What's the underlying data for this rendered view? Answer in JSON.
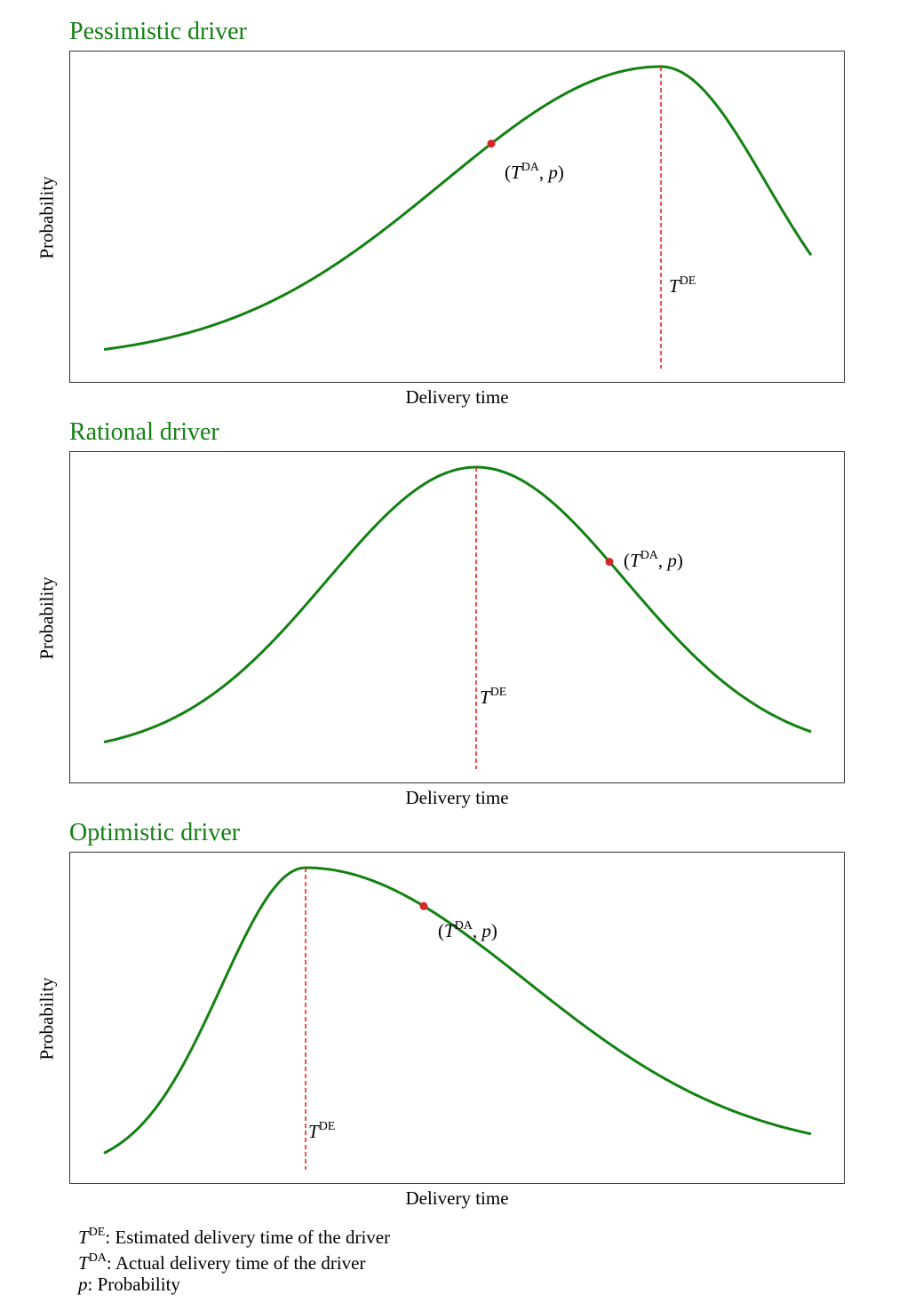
{
  "chart_data": [
    {
      "type": "line",
      "title": "Pessimistic driver",
      "xlabel": "Delivery time",
      "ylabel": "Probability",
      "grid": false,
      "series": [
        {
          "color": "#128112",
          "shape": "left-skewed bell, peak near right"
        }
      ],
      "peak_position": 0.78,
      "annotations": {
        "point_label": "(TDA, p)",
        "point_label_parts": [
          "(",
          "T",
          "DA",
          ", ",
          "p",
          ")"
        ],
        "vline_label": "TDE",
        "vline_label_parts": [
          "T",
          "DE"
        ]
      }
    },
    {
      "type": "line",
      "title": "Rational driver",
      "xlabel": "Delivery time",
      "ylabel": "Probability",
      "grid": false,
      "series": [
        {
          "color": "#128112",
          "shape": "symmetric bell"
        }
      ],
      "peak_position": 0.52,
      "annotations": {
        "point_label": "(TDA, p)",
        "point_label_parts": [
          "(",
          "T",
          "DA",
          ", ",
          "p",
          ")"
        ],
        "vline_label": "TDE",
        "vline_label_parts": [
          "T",
          "DE"
        ]
      }
    },
    {
      "type": "line",
      "title": "Optimistic driver",
      "xlabel": "Delivery time",
      "ylabel": "Probability",
      "grid": false,
      "series": [
        {
          "color": "#128112",
          "shape": "right-skewed bell, peak near left"
        }
      ],
      "peak_position": 0.28,
      "annotations": {
        "point_label": "(TDA, p)",
        "point_label_parts": [
          "(",
          "T",
          "DA",
          ", ",
          "p",
          ")"
        ],
        "vline_label": "TDE",
        "vline_label_parts": [
          "T",
          "DE"
        ]
      }
    }
  ],
  "colors": {
    "curve": "#128112",
    "title": "#128112",
    "vline": "#e8262a",
    "point": "#d62728"
  },
  "legend": [
    {
      "sym": "T",
      "sup": "DE",
      "text": ": Estimated delivery time of the driver"
    },
    {
      "sym": "T",
      "sup": "DA",
      "text": ": Actual delivery time of the driver"
    },
    {
      "sym": "p",
      "sup": "",
      "text": ": Probability"
    }
  ]
}
